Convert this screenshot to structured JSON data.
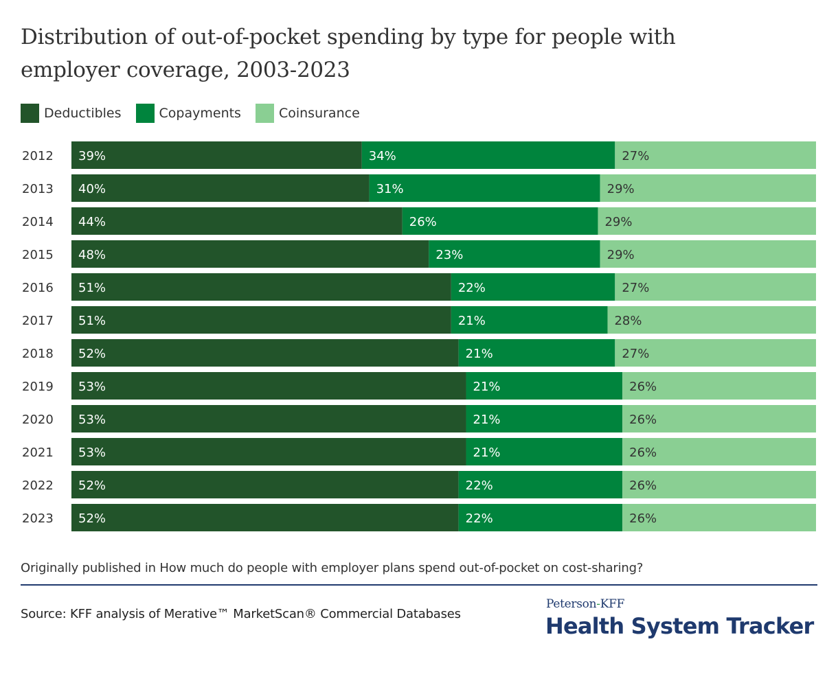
{
  "title": "Distribution of out-of-pocket spending by type for people with employer coverage, 2003-2023",
  "legend": [
    {
      "label": "Deductibles",
      "color": "#22542a"
    },
    {
      "label": "Copayments",
      "color": "#00843d"
    },
    {
      "label": "Coinsurance",
      "color": "#8acf93"
    }
  ],
  "note": "Originally published in How much do people with employer plans spend out-of-pocket on cost-sharing?",
  "source": "Source: KFF analysis of Merative™ MarketScan® Commercial Databases",
  "logo": {
    "prefix_1": "Peterson",
    "hyphen": "-",
    "prefix_2": "KFF",
    "name": "Health System Tracker"
  },
  "chart_data": {
    "type": "bar",
    "orientation": "horizontal",
    "stacked": true,
    "normalized": true,
    "title": "Distribution of out-of-pocket spending by type for people with employer coverage, 2003-2023",
    "xlabel": "",
    "ylabel": "",
    "legend_position": "top-left",
    "grid": false,
    "categories": [
      "2012",
      "2013",
      "2014",
      "2015",
      "2016",
      "2017",
      "2018",
      "2019",
      "2020",
      "2021",
      "2022",
      "2023"
    ],
    "series": [
      {
        "name": "Deductibles",
        "color": "#22542a",
        "label_color": "#ffffff",
        "values": [
          39,
          40,
          44,
          48,
          51,
          51,
          52,
          53,
          53,
          53,
          52,
          52
        ]
      },
      {
        "name": "Copayments",
        "color": "#00843d",
        "label_color": "#ffffff",
        "values": [
          34,
          31,
          26,
          23,
          22,
          21,
          21,
          21,
          21,
          21,
          22,
          22
        ]
      },
      {
        "name": "Coinsurance",
        "color": "#8acf93",
        "label_color": "#333333",
        "values": [
          27,
          29,
          29,
          29,
          27,
          28,
          27,
          26,
          26,
          26,
          26,
          26
        ]
      }
    ],
    "value_suffix": "%"
  }
}
